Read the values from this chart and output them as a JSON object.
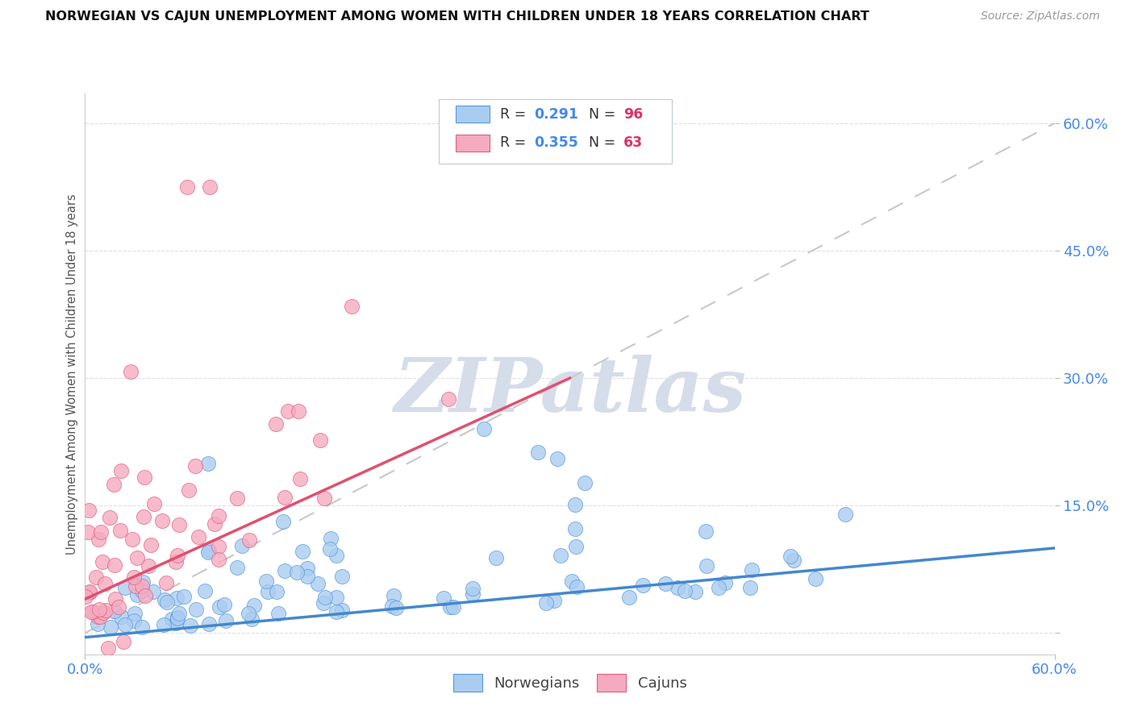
{
  "title": "NORWEGIAN VS CAJUN UNEMPLOYMENT AMONG WOMEN WITH CHILDREN UNDER 18 YEARS CORRELATION CHART",
  "source": "Source: ZipAtlas.com",
  "ylabel": "Unemployment Among Women with Children Under 18 years",
  "xmin": 0.0,
  "xmax": 0.6,
  "ymin": -0.025,
  "ymax": 0.635,
  "ytick_positions": [
    0.0,
    0.15,
    0.3,
    0.45,
    0.6
  ],
  "ytick_labels": [
    "",
    "15.0%",
    "30.0%",
    "45.0%",
    "60.0%"
  ],
  "norwegian_R": 0.291,
  "norwegian_N": 96,
  "cajun_R": 0.355,
  "cajun_N": 63,
  "norwegian_color": "#aaccf0",
  "cajun_color": "#f5aac0",
  "norwegian_edge_color": "#5599dd",
  "cajun_edge_color": "#e06080",
  "norwegian_line_color": "#4488cc",
  "cajun_line_color": "#e05070",
  "ref_line_color": "#c8c8c8",
  "bg_color": "#ffffff",
  "watermark_color": "#d5dcea",
  "R_text_color": "#4488ee",
  "N_text_color": "#dd3366",
  "axis_tick_color": "#4488ee",
  "title_color": "#111111",
  "source_color": "#999999",
  "grid_color": "#e0e0e0",
  "nor_trend_x": [
    0.0,
    0.6
  ],
  "nor_trend_y": [
    -0.005,
    0.1
  ],
  "caj_trend_x": [
    0.0,
    0.3
  ],
  "caj_trend_y": [
    0.04,
    0.3
  ]
}
